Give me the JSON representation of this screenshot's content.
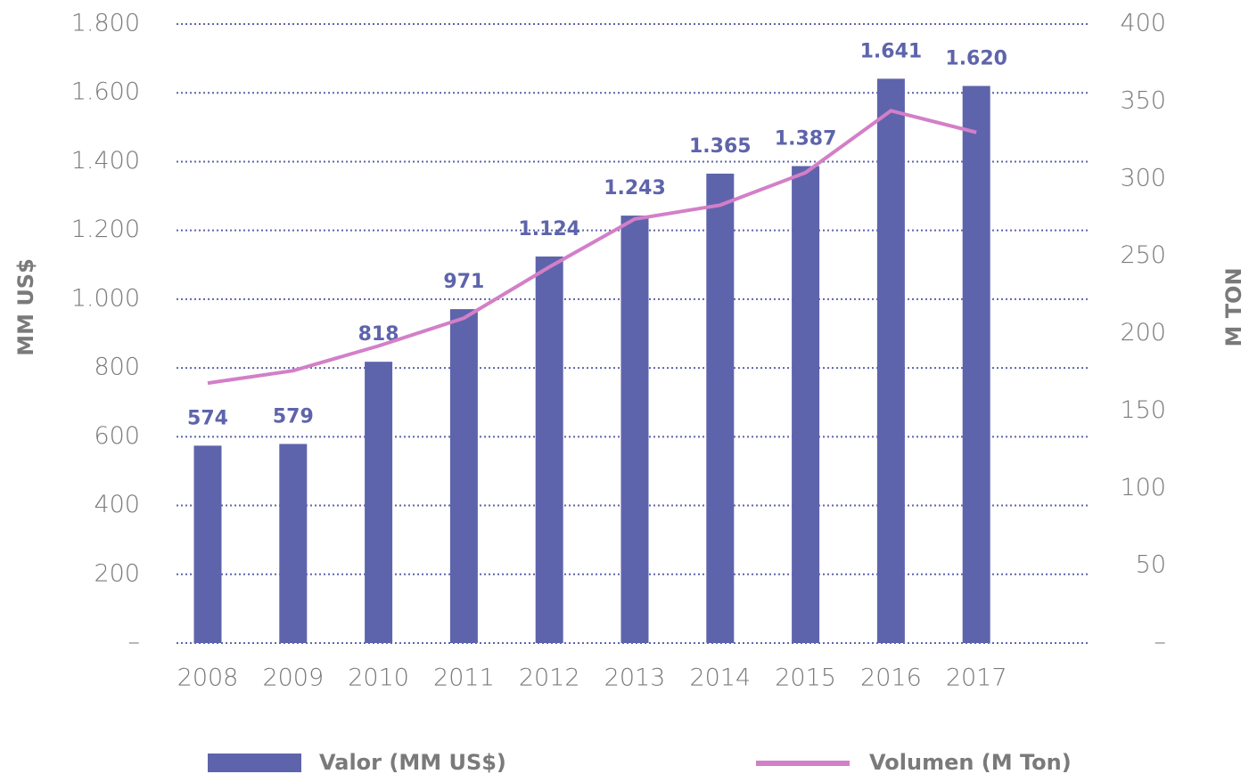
{
  "chart_data": {
    "type": "bar-line",
    "categories": [
      "2008",
      "2009",
      "2010",
      "2011",
      "2012",
      "2013",
      "2014",
      "2015",
      "2016",
      "2017"
    ],
    "y_label": "MM US$",
    "y2_label": "M TON",
    "ylim": [
      0,
      1800
    ],
    "yticks": [
      {
        "value": 0,
        "label": "–"
      },
      200,
      400,
      600,
      800,
      {
        "value": 1000,
        "label": "1.000"
      },
      {
        "value": 1200,
        "label": "1.200"
      },
      {
        "value": 1400,
        "label": "1.400"
      },
      {
        "value": 1600,
        "label": "1.600"
      },
      {
        "value": 1800,
        "label": "1.800"
      }
    ],
    "y2lim": [
      0,
      400
    ],
    "y2ticks": [
      {
        "value": 0,
        "label": "–"
      },
      50,
      100,
      150,
      200,
      250,
      300,
      350,
      400
    ],
    "grid": true,
    "legend": "bottom",
    "series": [
      {
        "name": "Valor (MM US$)",
        "type": "bar",
        "color": "#5e64ab",
        "values": [
          574,
          579,
          818,
          971,
          1124,
          1243,
          1365,
          1387,
          1641,
          1620
        ],
        "value_labels": [
          "574",
          "579",
          "818",
          "971",
          "1.124",
          "1.243",
          "1.365",
          "1.387",
          "1.641",
          "1.620"
        ]
      },
      {
        "name": "Volumen (M Ton)",
        "type": "line",
        "axis": "y2",
        "color": "#d37fc8",
        "values": [
          168,
          176,
          192,
          210,
          243,
          274,
          283,
          304,
          344,
          330
        ]
      }
    ]
  }
}
